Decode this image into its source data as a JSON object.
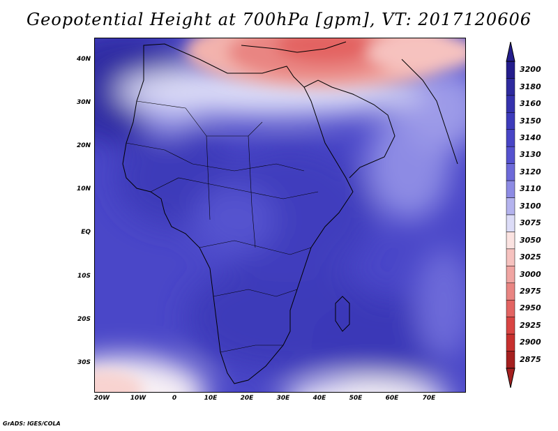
{
  "title": "Geopotential Height at 700hPa [gpm], VT: 2017120606",
  "credit": "GrADS: IGES/COLA",
  "map": {
    "lat_labels": [
      "40N",
      "30N",
      "20N",
      "10N",
      "EQ",
      "10S",
      "20S",
      "30S"
    ],
    "lon_labels": [
      "20W",
      "10W",
      "0",
      "10E",
      "20E",
      "30E",
      "40E",
      "50E",
      "60E",
      "70E"
    ]
  },
  "colorbar": {
    "levels": [
      "3200",
      "3180",
      "3160",
      "3150",
      "3140",
      "3130",
      "3120",
      "3110",
      "3100",
      "3075",
      "3050",
      "3025",
      "3000",
      "2975",
      "2950",
      "2925",
      "2900",
      "2875"
    ],
    "colors": [
      "#241d8c",
      "#2e2a9e",
      "#3532ad",
      "#3d3bbb",
      "#4845c6",
      "#5552cf",
      "#6d6ad9",
      "#8d8be4",
      "#b4b3ee",
      "#dcdcf7",
      "#fbe3e1",
      "#f6c2bf",
      "#f0a5a2",
      "#e98582",
      "#e36462",
      "#d94543",
      "#c7302e",
      "#a5201f"
    ]
  }
}
